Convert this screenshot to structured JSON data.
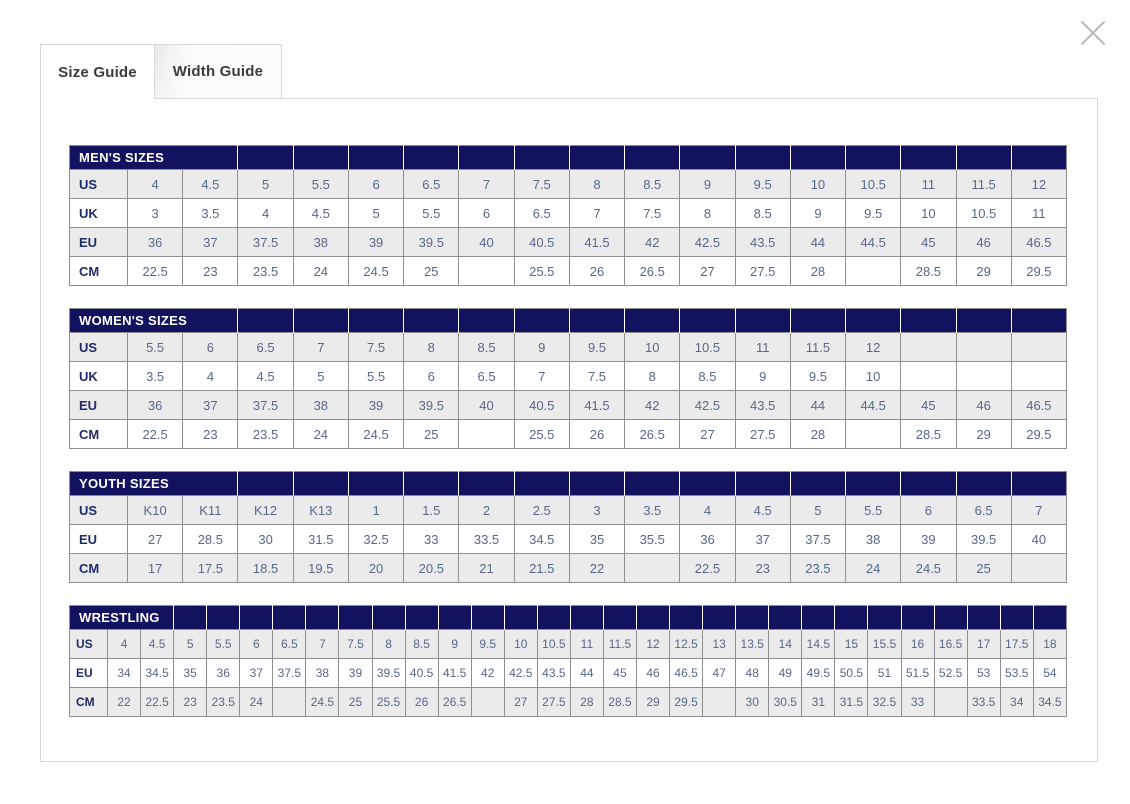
{
  "close": {
    "icon": "close-icon"
  },
  "tabs": [
    {
      "label": "Size Guide",
      "active": true
    },
    {
      "label": "Width Guide",
      "active": false
    }
  ],
  "colors": {
    "header_navy": "#12125f",
    "value_text": "#56688c",
    "label_text": "#1e2c6b",
    "shade_row": "#ebebeb"
  },
  "tables": [
    {
      "id": "mens",
      "title": "MEN'S SIZES",
      "title_colspan": 3,
      "compact": false,
      "rows": [
        {
          "label": "US",
          "values": [
            "4",
            "4.5",
            "5",
            "5.5",
            "6",
            "6.5",
            "7",
            "7.5",
            "8",
            "8.5",
            "9",
            "9.5",
            "10",
            "10.5",
            "11",
            "11.5",
            "12"
          ]
        },
        {
          "label": "UK",
          "values": [
            "3",
            "3.5",
            "4",
            "4.5",
            "5",
            "5.5",
            "6",
            "6.5",
            "7",
            "7.5",
            "8",
            "8.5",
            "9",
            "9.5",
            "10",
            "10.5",
            "11"
          ]
        },
        {
          "label": "EU",
          "values": [
            "36",
            "37",
            "37.5",
            "38",
            "39",
            "39.5",
            "40",
            "40.5",
            "41.5",
            "42",
            "42.5",
            "43.5",
            "44",
            "44.5",
            "45",
            "46",
            "46.5"
          ]
        },
        {
          "label": "CM",
          "values": [
            "22.5",
            "23",
            "23.5",
            "24",
            "24.5",
            "25",
            "",
            "25.5",
            "26",
            "26.5",
            "27",
            "27.5",
            "28",
            "",
            "28.5",
            "29",
            "29.5"
          ]
        }
      ]
    },
    {
      "id": "womens",
      "title": "WOMEN'S SIZES",
      "title_colspan": 3,
      "compact": false,
      "rows": [
        {
          "label": "US",
          "values": [
            "5.5",
            "6",
            "6.5",
            "7",
            "7.5",
            "8",
            "8.5",
            "9",
            "9.5",
            "10",
            "10.5",
            "11",
            "11.5",
            "12",
            "",
            "",
            ""
          ]
        },
        {
          "label": "UK",
          "values": [
            "3.5",
            "4",
            "4.5",
            "5",
            "5.5",
            "6",
            "6.5",
            "7",
            "7.5",
            "8",
            "8.5",
            "9",
            "9.5",
            "10",
            "",
            "",
            ""
          ]
        },
        {
          "label": "EU",
          "values": [
            "36",
            "37",
            "37.5",
            "38",
            "39",
            "39.5",
            "40",
            "40.5",
            "41.5",
            "42",
            "42.5",
            "43.5",
            "44",
            "44.5",
            "45",
            "46",
            "46.5"
          ]
        },
        {
          "label": "CM",
          "values": [
            "22.5",
            "23",
            "23.5",
            "24",
            "24.5",
            "25",
            "",
            "25.5",
            "26",
            "26.5",
            "27",
            "27.5",
            "28",
            "",
            "28.5",
            "29",
            "29.5"
          ]
        }
      ]
    },
    {
      "id": "youth",
      "title": "YOUTH SIZES",
      "title_colspan": 3,
      "compact": false,
      "rows": [
        {
          "label": "US",
          "values": [
            "K10",
            "K11",
            "K12",
            "K13",
            "1",
            "1.5",
            "2",
            "2.5",
            "3",
            "3.5",
            "4",
            "4.5",
            "5",
            "5.5",
            "6",
            "6.5",
            "7"
          ]
        },
        {
          "label": "EU",
          "values": [
            "27",
            "28.5",
            "30",
            "31.5",
            "32.5",
            "33",
            "33.5",
            "34.5",
            "35",
            "35.5",
            "36",
            "37",
            "37.5",
            "38",
            "39",
            "39.5",
            "40"
          ]
        },
        {
          "label": "CM",
          "values": [
            "17",
            "17.5",
            "18.5",
            "19.5",
            "20",
            "20.5",
            "21",
            "21.5",
            "22",
            "",
            "22.5",
            "23",
            "23.5",
            "24",
            "24.5",
            "25",
            ""
          ]
        }
      ]
    },
    {
      "id": "wrestling",
      "title": "WRESTLING",
      "title_colspan": 3,
      "compact": true,
      "rows": [
        {
          "label": "US",
          "values": [
            "4",
            "4.5",
            "5",
            "5.5",
            "6",
            "6.5",
            "7",
            "7.5",
            "8",
            "8.5",
            "9",
            "9.5",
            "10",
            "10.5",
            "11",
            "11.5",
            "12",
            "12.5",
            "13",
            "13.5",
            "14",
            "14.5",
            "15",
            "15.5",
            "16",
            "16.5",
            "17",
            "17.5",
            "18"
          ]
        },
        {
          "label": "EU",
          "values": [
            "34",
            "34.5",
            "35",
            "36",
            "37",
            "37.5",
            "38",
            "39",
            "39.5",
            "40.5",
            "41.5",
            "42",
            "42.5",
            "43.5",
            "44",
            "45",
            "46",
            "46.5",
            "47",
            "48",
            "49",
            "49.5",
            "50.5",
            "51",
            "51.5",
            "52.5",
            "53",
            "53.5",
            "54"
          ]
        },
        {
          "label": "CM",
          "values": [
            "22",
            "22.5",
            "23",
            "23.5",
            "24",
            "",
            "24.5",
            "25",
            "25.5",
            "26",
            "26.5",
            "",
            "27",
            "27.5",
            "28",
            "28.5",
            "29",
            "29.5",
            "",
            "30",
            "30.5",
            "31",
            "31.5",
            "32.5",
            "33",
            "",
            "33.5",
            "34",
            "34.5"
          ]
        }
      ]
    }
  ]
}
